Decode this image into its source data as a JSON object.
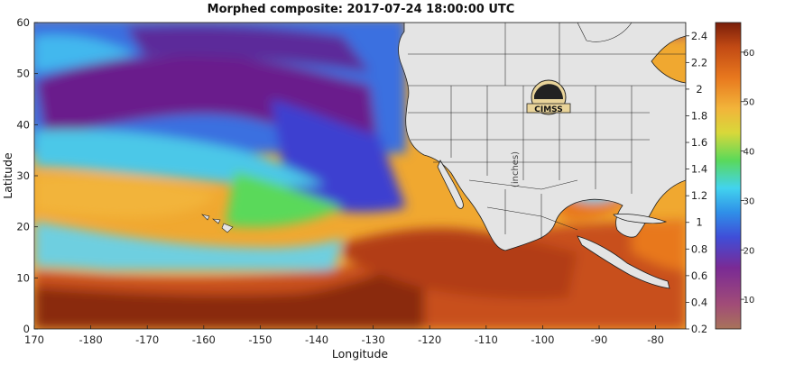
{
  "title": "Morphed composite: 2017-07-24 18:00:00 UTC",
  "x_axis": {
    "label": "Longitude",
    "ticks": [
      "170",
      "-180",
      "-170",
      "-160",
      "-150",
      "-140",
      "-130",
      "-120",
      "-110",
      "-100",
      "-90",
      "-80"
    ]
  },
  "y_axis": {
    "label": "Latitude",
    "ticks": [
      "0",
      "10",
      "20",
      "30",
      "40",
      "50",
      "60"
    ]
  },
  "inner_colorbar": {
    "label": "(inches)",
    "ticks": [
      "0.2",
      "0.4",
      "0.6",
      "0.8",
      "1",
      "1.2",
      "1.4",
      "1.6",
      "1.8",
      "2",
      "2.2",
      "2.4"
    ]
  },
  "outer_colorbar": {
    "ticks": [
      "10",
      "20",
      "30",
      "40",
      "50",
      "60"
    ]
  },
  "logo": {
    "text": "CIMSS"
  },
  "colors": {
    "dry_purple": "#6a1e8c",
    "moist_blue": "#2f6fe0",
    "cyan": "#42d3ee",
    "green": "#5ad95a",
    "yellow": "#f2c43a",
    "orange": "#e8781e",
    "dark_red": "#8a2a10",
    "land": "#e4e4e4"
  }
}
